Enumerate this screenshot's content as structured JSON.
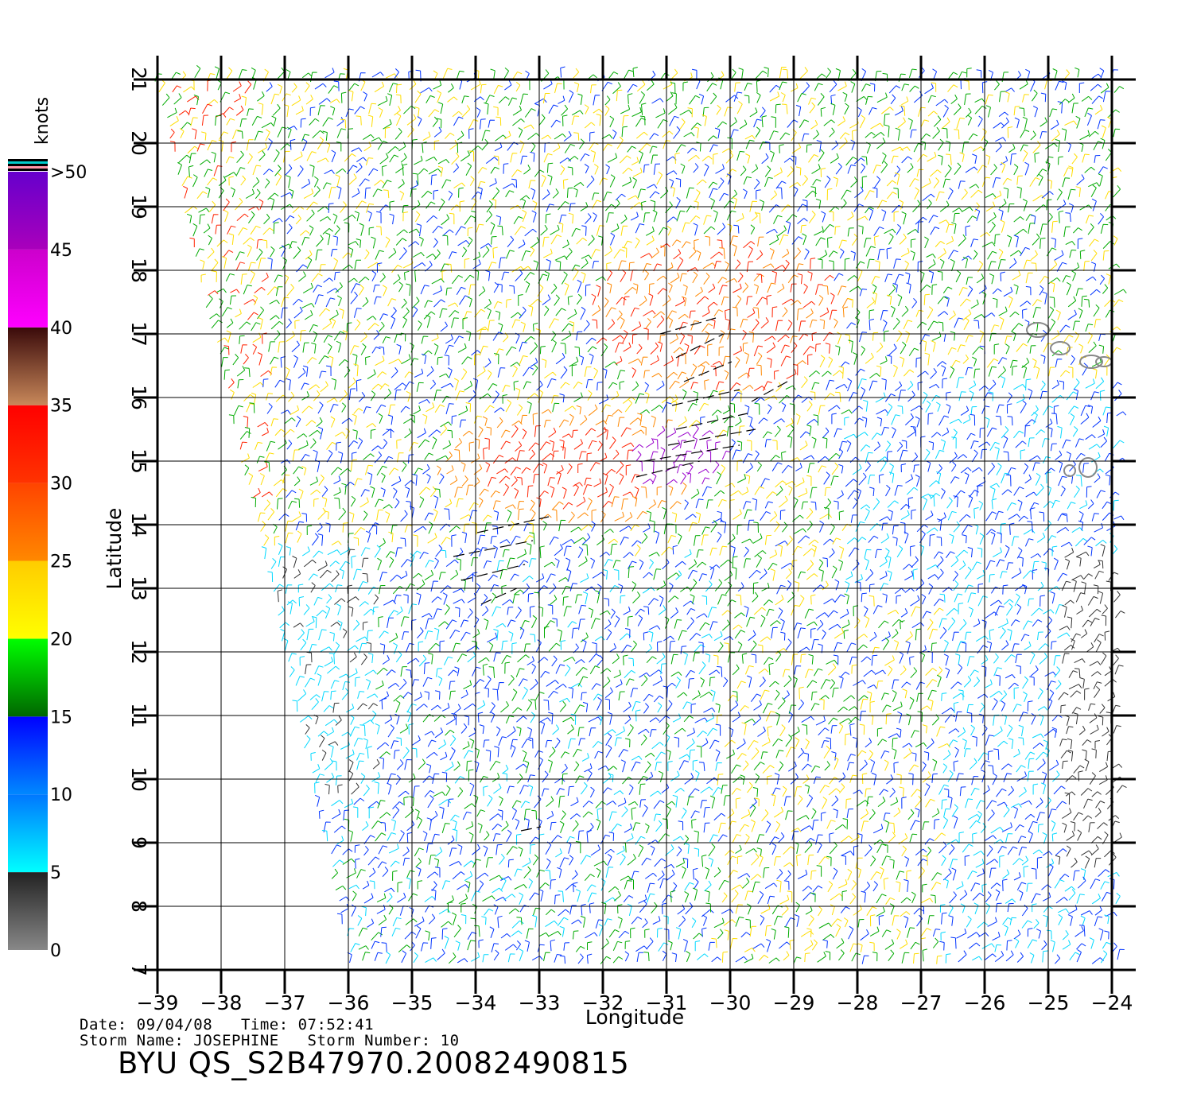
{
  "map": {
    "x_axis_title": "Longitude",
    "y_axis_title": "Latitude",
    "lon_ticks": [
      "-39",
      "-38",
      "-37",
      "-36",
      "-35",
      "-34",
      "-33",
      "-32",
      "-31",
      "-30",
      "-29",
      "-28",
      "-27",
      "-26",
      "-25",
      "-24"
    ],
    "lat_ticks": [
      "7",
      "8",
      "9",
      "10",
      "11",
      "12",
      "13",
      "14",
      "15",
      "16",
      "17",
      "18",
      "19",
      "20",
      "21"
    ],
    "lon_range": [
      -39,
      -24
    ],
    "lat_range": [
      7,
      21
    ],
    "grid": true
  },
  "colorbar": {
    "unit": "knots",
    "labels": [
      "0",
      "5",
      "10",
      "15",
      "20",
      "25",
      "30",
      "35",
      "40",
      "45",
      ">50"
    ],
    "bands": [
      {
        "from": 0,
        "to": 5,
        "colors": [
          "#888888",
          "#222222"
        ]
      },
      {
        "from": 5,
        "to": 10,
        "colors": [
          "#00ffff",
          "#0077ff"
        ]
      },
      {
        "from": 10,
        "to": 15,
        "colors": [
          "#0088ff",
          "#0000ff"
        ]
      },
      {
        "from": 15,
        "to": 20,
        "colors": [
          "#006600",
          "#00ff00"
        ]
      },
      {
        "from": 20,
        "to": 25,
        "colors": [
          "#ffff00",
          "#ffcc00"
        ]
      },
      {
        "from": 25,
        "to": 30,
        "colors": [
          "#ff8800",
          "#ff4400"
        ]
      },
      {
        "from": 30,
        "to": 35,
        "colors": [
          "#ff3300",
          "#ff0000"
        ]
      },
      {
        "from": 35,
        "to": 40,
        "colors": [
          "#c8885a",
          "#3a0a0a"
        ]
      },
      {
        "from": 40,
        "to": 45,
        "colors": [
          "#ff00ff",
          "#cc00cc"
        ]
      },
      {
        "from": 45,
        "to": 50,
        "colors": [
          "#aa00bb",
          "#6600cc"
        ]
      }
    ]
  },
  "wind_colors": {
    "calm": "#333333",
    "light": "#00d8ff",
    "moderate": "#0033ff",
    "fresh": "#00aa00",
    "strong": "#ffdd00",
    "near_gale": "#ff8800",
    "gale": "#ff2200",
    "storm": "#9900cc",
    "flagged": "#000000"
  },
  "footer": {
    "line1": "Date: 09/04/08   Time: 07:52:41",
    "line2": "Storm Name: JOSEPHINE   Storm Number: 10",
    "product": "BYU QS_S2B47970.20082490815"
  }
}
